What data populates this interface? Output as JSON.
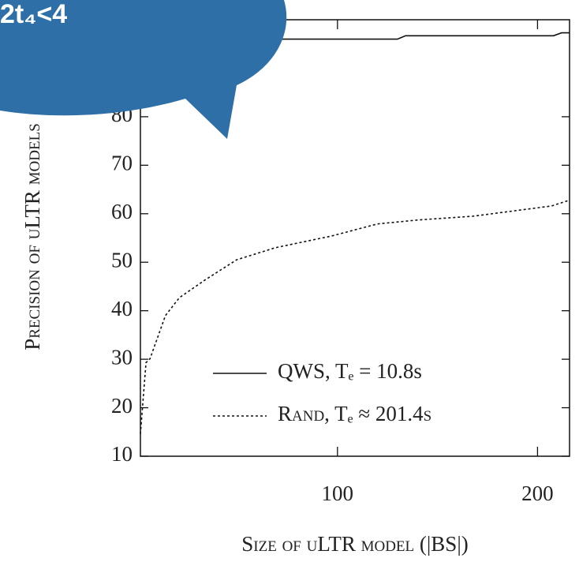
{
  "chart_data": {
    "type": "line",
    "y_label": "Precision of uLTR models",
    "x_label": "Size of uLTR model (|BS|)",
    "xlim": [
      1.5,
      216
    ],
    "ylim": [
      10,
      100
    ],
    "xticks": [
      100,
      200
    ],
    "yticks": [
      10,
      20,
      30,
      40,
      50,
      60,
      70,
      80
    ],
    "series": [
      {
        "name": "QWS, Tₑ = 10.8s",
        "color": "#111111",
        "dash": "solid",
        "x": [
          1.5,
          130,
          134,
          208,
          212,
          216
        ],
        "values": [
          96,
          96,
          96.7,
          96.7,
          97.3,
          97.3
        ]
      },
      {
        "name": "Rand, Tₑ ≈ 201.4s",
        "color": "#111111",
        "dash": "dotted",
        "x": [
          1.5,
          4.3,
          6.3,
          14,
          21,
          34,
          49.6,
          69,
          97,
          120,
          140,
          168,
          207,
          216
        ],
        "values": [
          14.6,
          29.3,
          30.1,
          39,
          42.7,
          46.4,
          50.5,
          53,
          55.4,
          57.9,
          58.7,
          59.5,
          61.6,
          62.8
        ]
      }
    ],
    "legend": "lower right",
    "overlay_text": "2t₄<4"
  }
}
